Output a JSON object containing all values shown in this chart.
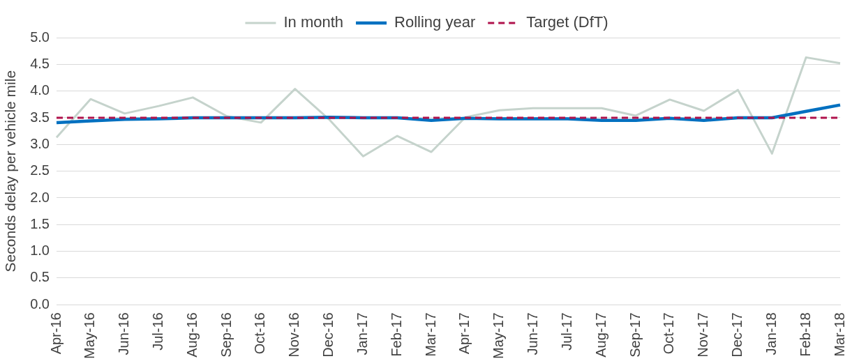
{
  "chart_data": {
    "type": "line",
    "ylabel": "Seconds delay per vehicle mile",
    "categories": [
      "Apr-16",
      "May-16",
      "Jun-16",
      "Jul-16",
      "Aug-16",
      "Sep-16",
      "Oct-16",
      "Nov-16",
      "Dec-16",
      "Jan-17",
      "Feb-17",
      "Mar-17",
      "Apr-17",
      "May-17",
      "Jun-17",
      "Jul-17",
      "Aug-17",
      "Sep-17",
      "Oct-17",
      "Nov-17",
      "Dec-17",
      "Jan-18",
      "Feb-18",
      "Mar-18"
    ],
    "series": [
      {
        "name": "In month",
        "color": "#c5d3cc",
        "line_style": "solid",
        "values": [
          3.13,
          3.85,
          3.58,
          3.72,
          3.88,
          3.53,
          3.41,
          4.04,
          3.47,
          2.78,
          3.16,
          2.86,
          3.51,
          3.64,
          3.68,
          3.68,
          3.68,
          3.54,
          3.84,
          3.63,
          4.02,
          2.83,
          4.63,
          4.52
        ]
      },
      {
        "name": "Rolling year",
        "color": "#0070c0",
        "line_style": "solid",
        "values": [
          3.41,
          3.44,
          3.47,
          3.48,
          3.5,
          3.5,
          3.5,
          3.5,
          3.51,
          3.5,
          3.5,
          3.45,
          3.49,
          3.48,
          3.48,
          3.48,
          3.45,
          3.45,
          3.49,
          3.45,
          3.5,
          3.5,
          3.62,
          3.74
        ]
      },
      {
        "name": "Target (DfT)",
        "color": "#b0124c",
        "line_style": "dashed",
        "values": [
          3.5,
          3.5,
          3.5,
          3.5,
          3.5,
          3.5,
          3.5,
          3.5,
          3.5,
          3.5,
          3.5,
          3.5,
          3.5,
          3.5,
          3.5,
          3.5,
          3.5,
          3.5,
          3.5,
          3.5,
          3.5,
          3.5,
          3.5,
          3.5
        ]
      }
    ],
    "ylim": [
      0,
      5
    ],
    "yticks": [
      {
        "value": 0,
        "label": "0.0"
      },
      {
        "value": 0.5,
        "label": "0.5"
      },
      {
        "value": 1,
        "label": "1.0"
      },
      {
        "value": 1.5,
        "label": "1.5"
      },
      {
        "value": 2,
        "label": "2.0"
      },
      {
        "value": 2.5,
        "label": "2.5"
      },
      {
        "value": 3,
        "label": "3.0"
      },
      {
        "value": 3.5,
        "label": "3.5"
      },
      {
        "value": 4,
        "label": "4.0"
      },
      {
        "value": 4.5,
        "label": "4.5"
      },
      {
        "value": 5,
        "label": "5.0"
      }
    ],
    "grid": "y",
    "legend": "top",
    "marker": "none"
  }
}
